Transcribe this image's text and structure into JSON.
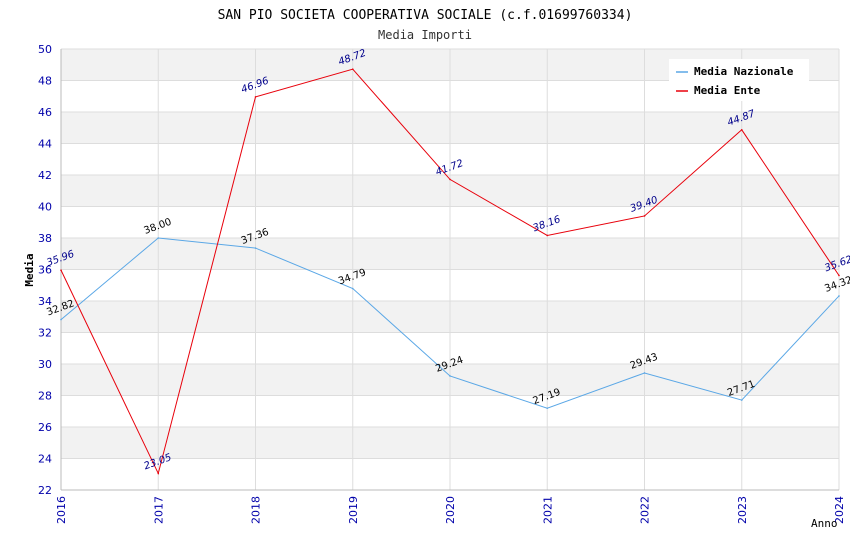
{
  "chart_data": {
    "type": "line",
    "title": "SAN PIO SOCIETA COOPERATIVA SOCIALE (c.f.01699760334)",
    "subtitle": "Media Importi",
    "xlabel": "Anno",
    "ylabel": "Media",
    "x": [
      "2016",
      "2017",
      "2018",
      "2019",
      "2020",
      "2021",
      "2022",
      "2023",
      "2024"
    ],
    "ylim": [
      22,
      50
    ],
    "yticks": [
      "22",
      "24",
      "26",
      "28",
      "30",
      "32",
      "34",
      "36",
      "38",
      "40",
      "42",
      "44",
      "46",
      "48",
      "50"
    ],
    "legend_position": "top-right",
    "series": [
      {
        "name": "Media Nazionale",
        "color": "#5aa7e6",
        "label_color": "#000000",
        "values": [
          32.82,
          38.0,
          37.36,
          34.79,
          29.24,
          27.19,
          29.43,
          27.71,
          34.32
        ],
        "labels": [
          "32.82",
          "38.00",
          "37.36",
          "34.79",
          "29.24",
          "27.19",
          "29.43",
          "27.71",
          "34.32"
        ]
      },
      {
        "name": "Media Ente",
        "color": "#e8000b",
        "label_color": "#00008b",
        "values": [
          35.96,
          23.05,
          46.96,
          48.72,
          41.72,
          38.16,
          39.4,
          44.87,
          35.62
        ],
        "labels": [
          "35.96",
          "23.05",
          "46.96",
          "48.72",
          "41.72",
          "38.16",
          "39.40",
          "44.87",
          "35.62"
        ]
      }
    ]
  }
}
